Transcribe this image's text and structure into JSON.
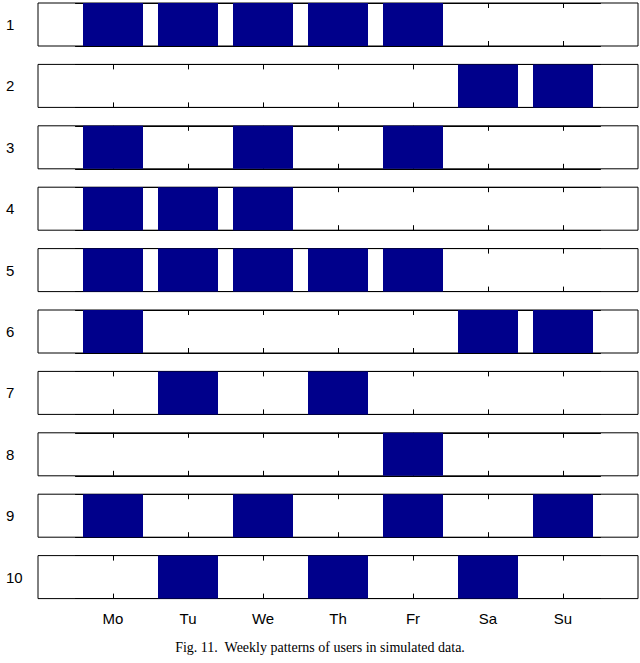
{
  "chart_data": {
    "type": "bar",
    "title": "Fig. 11.  Weekly patterns of users in simulated data.",
    "categories": [
      "Mo",
      "Tu",
      "We",
      "Th",
      "Fr",
      "Sa",
      "Su"
    ],
    "color": "#00008b",
    "ylim": [
      0,
      1
    ],
    "tick_labels": "x",
    "series": [
      {
        "name": "1",
        "values": [
          1,
          1,
          1,
          1,
          1,
          0,
          0
        ]
      },
      {
        "name": "2",
        "values": [
          0,
          0,
          0,
          0,
          0,
          1,
          1
        ]
      },
      {
        "name": "3",
        "values": [
          1,
          0,
          1,
          0,
          1,
          0,
          0
        ]
      },
      {
        "name": "4",
        "values": [
          1,
          1,
          1,
          0,
          0,
          0,
          0
        ]
      },
      {
        "name": "5",
        "values": [
          1,
          1,
          1,
          1,
          1,
          0,
          0
        ]
      },
      {
        "name": "6",
        "values": [
          1,
          0,
          0,
          0,
          0,
          1,
          1
        ]
      },
      {
        "name": "7",
        "values": [
          0,
          1,
          0,
          1,
          0,
          0,
          0
        ]
      },
      {
        "name": "8",
        "values": [
          0,
          0,
          0,
          0,
          1,
          0,
          0
        ]
      },
      {
        "name": "9",
        "values": [
          1,
          0,
          1,
          0,
          1,
          0,
          1
        ]
      },
      {
        "name": "10",
        "values": [
          0,
          1,
          0,
          1,
          0,
          1,
          0
        ]
      }
    ]
  }
}
